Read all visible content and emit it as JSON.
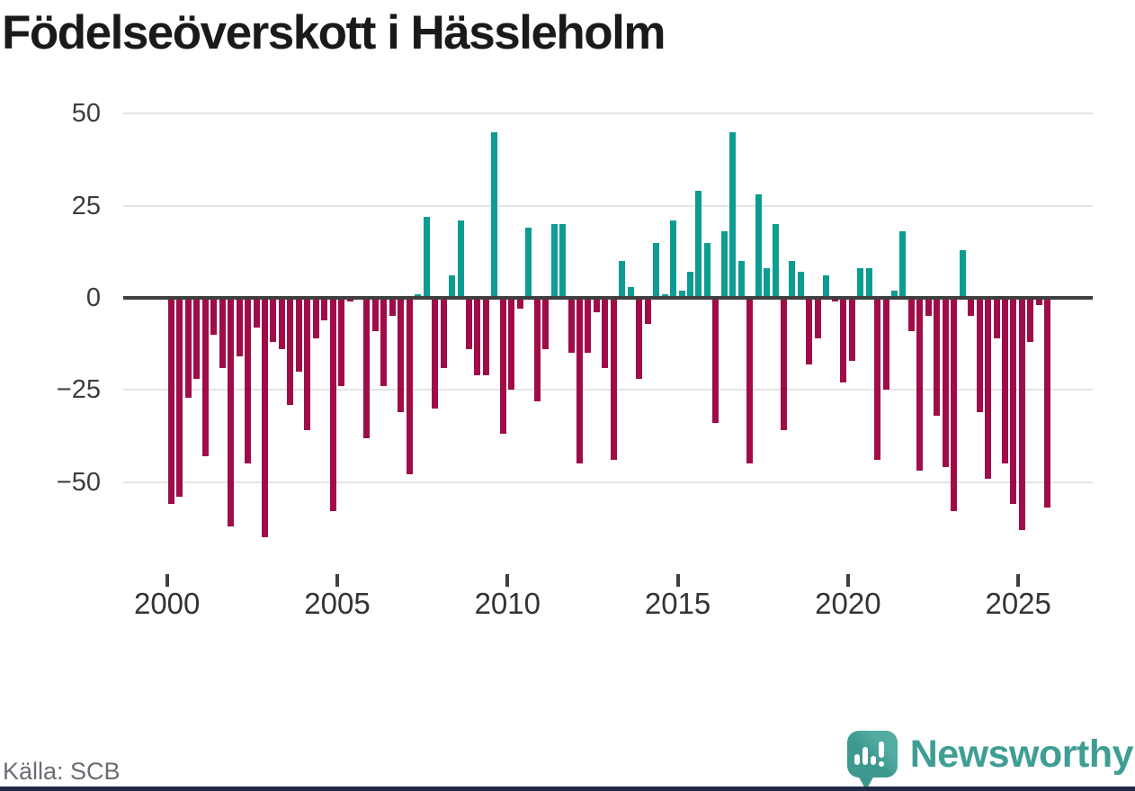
{
  "title": "Födelseöverskott i Hässleholm",
  "source": "Källa: SCB",
  "branding": {
    "logo_text": "Newsworthy",
    "logo_icon": "bar-chart-speech-bubble-icon"
  },
  "colors": {
    "positive_bar": "#0d9c92",
    "negative_bar": "#a00c48",
    "zero_line": "#3f3f3f",
    "gridline": "#e4e4e4",
    "axis_text": "#3d3d3d",
    "title_text": "#1a1a1a",
    "source_text": "#6c6c75",
    "brand_teal": "#3f9e94",
    "footer_stripe": "#1f2a47"
  },
  "chart_data": {
    "type": "bar",
    "title": "Födelseöverskott i Hässleholm",
    "xlabel": "",
    "ylabel": "",
    "x_unit": "quarter",
    "grid": "horizontal",
    "legend": "none",
    "ylim": [
      -70,
      52
    ],
    "y_ticks": [
      "50",
      "25",
      "0",
      "−25",
      "−50"
    ],
    "y_tick_values": [
      50,
      25,
      0,
      -25,
      -50
    ],
    "x_tick_years": [
      "2000",
      "2005",
      "2010",
      "2015",
      "2020",
      "2025"
    ],
    "series": [
      {
        "year": 2000,
        "values": [
          -56,
          -54,
          -27,
          -22
        ]
      },
      {
        "year": 2001,
        "values": [
          -43,
          -10,
          -19,
          -62
        ]
      },
      {
        "year": 2002,
        "values": [
          -16,
          -45,
          -8,
          -65
        ]
      },
      {
        "year": 2003,
        "values": [
          -12,
          -14,
          -29,
          -20
        ]
      },
      {
        "year": 2004,
        "values": [
          -36,
          -11,
          -6,
          -58
        ]
      },
      {
        "year": 2005,
        "values": [
          -24,
          -1,
          0,
          -38
        ]
      },
      {
        "year": 2006,
        "values": [
          -9,
          -24,
          -5,
          -31
        ]
      },
      {
        "year": 2007,
        "values": [
          -48,
          1,
          22,
          -30
        ]
      },
      {
        "year": 2008,
        "values": [
          -19,
          6,
          21,
          -14
        ]
      },
      {
        "year": 2009,
        "values": [
          -21,
          -21,
          45,
          -37
        ]
      },
      {
        "year": 2010,
        "values": [
          -25,
          -3,
          19,
          -28
        ]
      },
      {
        "year": 2011,
        "values": [
          -14,
          20,
          20,
          -15
        ]
      },
      {
        "year": 2012,
        "values": [
          -45,
          -15,
          -4,
          -19
        ]
      },
      {
        "year": 2013,
        "values": [
          -44,
          10,
          3,
          -22
        ]
      },
      {
        "year": 2014,
        "values": [
          -7,
          15,
          1,
          21
        ]
      },
      {
        "year": 2015,
        "values": [
          2,
          7,
          29,
          15
        ]
      },
      {
        "year": 2016,
        "values": [
          -34,
          18,
          45,
          10
        ]
      },
      {
        "year": 2017,
        "values": [
          -45,
          28,
          8,
          20
        ]
      },
      {
        "year": 2018,
        "values": [
          -36,
          10,
          7,
          -18
        ]
      },
      {
        "year": 2019,
        "values": [
          -11,
          6,
          -1,
          -23
        ]
      },
      {
        "year": 2020,
        "values": [
          -17,
          8,
          8,
          -44
        ]
      },
      {
        "year": 2021,
        "values": [
          -25,
          2,
          18,
          -9
        ]
      },
      {
        "year": 2022,
        "values": [
          -47,
          -5,
          -32,
          -46
        ]
      },
      {
        "year": 2023,
        "values": [
          -58,
          13,
          -5,
          -31
        ]
      },
      {
        "year": 2024,
        "values": [
          -49,
          -11,
          -45,
          -56
        ]
      },
      {
        "year": 2025,
        "values": [
          -63,
          -12,
          -2,
          -57
        ]
      }
    ]
  }
}
